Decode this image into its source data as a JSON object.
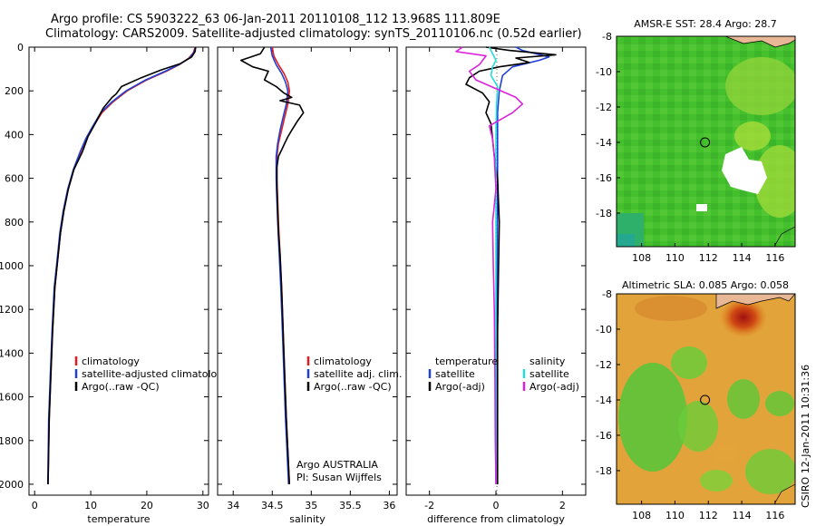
{
  "header": {
    "line1": "Argo profile: CS 5903222_63 06-Jan-2011 20110108_112 13.968S 111.809E",
    "line2": "Climatology: CARS2009. Satellite-adjusted climatology: synTS_20110106.nc (0.52d earlier)"
  },
  "side_label": "CSIRO 12-Jan-2011 10:31:36",
  "colors": {
    "red": "#e41a1c",
    "blue": "#1f3fd6",
    "black": "#000000",
    "cyan": "#22dddd",
    "magenta": "#dd22dd"
  },
  "chart_data": [
    {
      "type": "line",
      "xlabel": "temperature",
      "xlim": [
        -1,
        31
      ],
      "ylim": [
        0,
        2050
      ],
      "xticks": [
        "0",
        "10",
        "20",
        "30"
      ],
      "yticks": [
        "0",
        "200",
        "400",
        "600",
        "800",
        "1000",
        "1200",
        "1400",
        "1600",
        "1800",
        "2000"
      ],
      "legend": [
        "climatology",
        "satellite-adjusted climatology",
        "Argo(..raw -QC)"
      ],
      "series": [
        {
          "name": "climatology",
          "color": "red",
          "x": [
            28.6,
            28.3,
            27.5,
            25.8,
            23.5,
            20.0,
            16.5,
            14.0,
            12.0,
            10.5,
            9.2,
            8.2,
            7.0,
            6.0,
            5.2,
            4.6,
            4.2,
            3.6,
            3.2,
            2.9,
            2.6,
            2.4
          ],
          "y": [
            0,
            25,
            50,
            80,
            110,
            150,
            200,
            250,
            300,
            360,
            420,
            480,
            560,
            650,
            750,
            850,
            950,
            1100,
            1300,
            1500,
            1700,
            2000
          ]
        },
        {
          "name": "satellite-adjusted climatology",
          "color": "blue",
          "x": [
            28.7,
            28.4,
            27.6,
            25.7,
            23.3,
            19.8,
            16.3,
            13.8,
            11.8,
            10.4,
            9.1,
            8.1,
            6.9,
            5.9,
            5.1,
            4.5,
            4.1,
            3.5,
            3.1,
            2.8,
            2.5,
            2.35
          ],
          "y": [
            0,
            25,
            50,
            80,
            110,
            150,
            200,
            250,
            300,
            360,
            420,
            480,
            560,
            650,
            750,
            850,
            950,
            1100,
            1300,
            1500,
            1700,
            2000
          ]
        },
        {
          "name": "Argo(..raw -QC)",
          "color": "black",
          "x": [
            28.7,
            28.6,
            28.0,
            26.0,
            22.5,
            19.0,
            15.5,
            14.5,
            13.8,
            12.2,
            10.8,
            9.5,
            8.5,
            7.0,
            6.0,
            5.2,
            4.6,
            4.2,
            3.6,
            3.2,
            2.9,
            2.6,
            2.4
          ],
          "y": [
            0,
            20,
            45,
            75,
            105,
            140,
            180,
            215,
            230,
            280,
            350,
            410,
            480,
            560,
            650,
            750,
            850,
            950,
            1100,
            1300,
            1500,
            1700,
            2000
          ]
        }
      ]
    },
    {
      "type": "line",
      "xlabel": "salinity",
      "xlim": [
        33.8,
        36.1
      ],
      "ylim": [
        0,
        2050
      ],
      "xticks": [
        "34",
        "34.5",
        "35",
        "35.5",
        "36"
      ],
      "legend": [
        "climatology",
        "satellite adj. clim.",
        "Argo(..raw -QC)"
      ],
      "annotation": [
        "Argo AUSTRALIA",
        "PI: Susan Wijffels"
      ],
      "series": [
        {
          "name": "climatology",
          "color": "red",
          "x": [
            34.5,
            34.52,
            34.58,
            34.65,
            34.7,
            34.72,
            34.7,
            34.66,
            34.62,
            34.58,
            34.56,
            34.56,
            34.57,
            34.58,
            34.6,
            34.62,
            34.64,
            34.66,
            34.68,
            34.7,
            34.72
          ],
          "y": [
            0,
            40,
            80,
            120,
            160,
            200,
            260,
            320,
            380,
            440,
            500,
            600,
            700,
            800,
            950,
            1100,
            1300,
            1500,
            1700,
            1850,
            2000
          ]
        },
        {
          "name": "satellite adj. clim.",
          "color": "blue",
          "x": [
            34.48,
            34.5,
            34.55,
            34.62,
            34.67,
            34.7,
            34.68,
            34.64,
            34.6,
            34.57,
            34.55,
            34.55,
            34.56,
            34.57,
            34.59,
            34.61,
            34.63,
            34.65,
            34.67,
            34.69,
            34.71
          ],
          "y": [
            0,
            40,
            80,
            120,
            160,
            200,
            260,
            320,
            380,
            440,
            500,
            600,
            700,
            800,
            950,
            1100,
            1300,
            1500,
            1700,
            1850,
            2000
          ]
        },
        {
          "name": "Argo(..raw -QC)",
          "color": "black",
          "x": [
            34.4,
            34.35,
            34.1,
            34.25,
            34.45,
            34.4,
            34.55,
            34.65,
            34.75,
            34.6,
            34.85,
            34.9,
            34.82,
            34.75,
            34.7,
            34.66,
            34.62,
            34.58,
            34.56,
            34.56,
            34.57,
            34.58,
            34.6,
            34.62,
            34.64,
            34.66,
            34.68,
            34.7,
            34.72
          ],
          "y": [
            0,
            30,
            60,
            90,
            110,
            150,
            180,
            210,
            230,
            245,
            265,
            300,
            340,
            380,
            410,
            440,
            470,
            500,
            550,
            650,
            750,
            850,
            950,
            1100,
            1300,
            1500,
            1700,
            1850,
            2000
          ]
        }
      ]
    },
    {
      "type": "line",
      "xlabel": "difference from climatology",
      "xlim": [
        -2.7,
        2.7
      ],
      "ylim": [
        0,
        2050
      ],
      "xticks": [
        "-2",
        "0",
        "2"
      ],
      "legend_t": [
        "temperature",
        "satellite",
        "Argo(-adj)"
      ],
      "legend_s": [
        "salinity",
        "satellite",
        "Argo(-adj)"
      ],
      "series": [
        {
          "name": "temperature satellite",
          "color": "blue",
          "x": [
            0.6,
            0.8,
            1.2,
            1.6,
            1.3,
            0.5,
            0.2,
            0.1,
            0.05,
            0.05,
            0.05,
            0.04,
            0.03,
            0.02,
            0.01,
            0.0
          ],
          "y": [
            0,
            15,
            30,
            45,
            60,
            90,
            130,
            200,
            300,
            500,
            700,
            900,
            1200,
            1500,
            1800,
            2000
          ]
        },
        {
          "name": "temperature Argo(-adj)",
          "color": "black",
          "x": [
            -0.3,
            0.4,
            1.8,
            0.6,
            1.0,
            0.1,
            -0.5,
            -0.8,
            -0.9,
            -0.4,
            -0.2,
            -0.3,
            -0.15,
            -0.1,
            -0.05,
            0.05,
            0.1,
            0.08,
            0.05,
            0.05,
            0.05,
            0.05
          ],
          "y": [
            0,
            15,
            35,
            50,
            70,
            90,
            110,
            140,
            170,
            210,
            250,
            300,
            350,
            420,
            500,
            600,
            800,
            1000,
            1300,
            1500,
            1800,
            2000
          ]
        },
        {
          "name": "salinity satellite",
          "color": "cyan",
          "x": [
            -0.2,
            -0.1,
            0.0,
            -0.1,
            -0.15,
            0.05,
            0.02,
            0.0,
            0.0,
            0.0,
            0.0,
            0.0,
            0.0,
            0.0,
            0.0
          ],
          "y": [
            0,
            30,
            60,
            90,
            130,
            180,
            260,
            400,
            600,
            800,
            1000,
            1300,
            1600,
            1800,
            2000
          ]
        },
        {
          "name": "salinity Argo(-adj)",
          "color": "magenta",
          "x": [
            -1.0,
            -1.2,
            -0.3,
            -0.5,
            -0.8,
            -0.6,
            0.6,
            0.8,
            0.5,
            -0.2,
            -0.1,
            -0.05,
            0.0,
            -0.1,
            -0.08,
            -0.05,
            -0.03,
            -0.02,
            0.0
          ],
          "y": [
            0,
            20,
            40,
            80,
            110,
            150,
            230,
            260,
            300,
            360,
            420,
            500,
            650,
            800,
            1000,
            1200,
            1500,
            1800,
            2000
          ]
        }
      ]
    },
    {
      "type": "heatmap",
      "title": "AMSR-E SST: 28.4 Argo: 28.7",
      "xlim": [
        106.5,
        117.2
      ],
      "ylim": [
        -19.9,
        -8.0
      ],
      "xticks": [
        "108",
        "110",
        "112",
        "114",
        "116"
      ],
      "yticks": [
        "-8",
        "-10",
        "-12",
        "-14",
        "-16",
        "-18"
      ],
      "marker": [
        111.8,
        -14.0
      ]
    },
    {
      "type": "heatmap",
      "title": "Altimetric SLA: 0.085 Argo: 0.058",
      "xlim": [
        106.5,
        117.2
      ],
      "ylim": [
        -19.9,
        -8.0
      ],
      "xticks": [
        "108",
        "110",
        "112",
        "114",
        "116"
      ],
      "yticks": [
        "-8",
        "-10",
        "-12",
        "-14",
        "-16",
        "-18"
      ],
      "marker": [
        111.8,
        -14.0
      ]
    }
  ]
}
